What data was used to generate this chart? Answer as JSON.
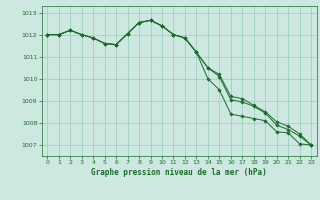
{
  "xlabel": "Graphe pression niveau de la mer (hPa)",
  "ylim": [
    1006.5,
    1013.3
  ],
  "xlim": [
    -0.5,
    23.5
  ],
  "yticks": [
    1007,
    1008,
    1009,
    1010,
    1011,
    1012,
    1013
  ],
  "xticks": [
    0,
    1,
    2,
    3,
    4,
    5,
    6,
    7,
    8,
    9,
    10,
    11,
    12,
    13,
    14,
    15,
    16,
    17,
    18,
    19,
    20,
    21,
    22,
    23
  ],
  "background_color": "#cce8e0",
  "grid_color": "#99ccbb",
  "line_color": "#1a6b2a",
  "series": [
    [
      1012.0,
      1012.0,
      1012.2,
      1012.0,
      1011.85,
      1011.6,
      1011.55,
      1012.05,
      1012.55,
      1012.65,
      1012.4,
      1012.0,
      1011.85,
      1011.2,
      1010.0,
      1009.5,
      1008.4,
      1008.3,
      1008.2,
      1008.1,
      1007.6,
      1007.55,
      1007.05,
      1007.0
    ],
    [
      1012.0,
      1012.0,
      1012.2,
      1012.0,
      1011.85,
      1011.6,
      1011.55,
      1012.05,
      1012.55,
      1012.65,
      1012.4,
      1012.0,
      1011.85,
      1011.2,
      1010.5,
      1010.1,
      1009.05,
      1008.95,
      1008.75,
      1008.45,
      1007.9,
      1007.7,
      1007.4,
      1007.0
    ],
    [
      1012.0,
      1012.0,
      1012.2,
      1012.0,
      1011.85,
      1011.6,
      1011.55,
      1012.05,
      1012.55,
      1012.65,
      1012.4,
      1012.0,
      1011.85,
      1011.2,
      1010.5,
      1010.2,
      1009.2,
      1009.1,
      1008.8,
      1008.5,
      1008.05,
      1007.85,
      1007.5,
      1007.0
    ]
  ]
}
